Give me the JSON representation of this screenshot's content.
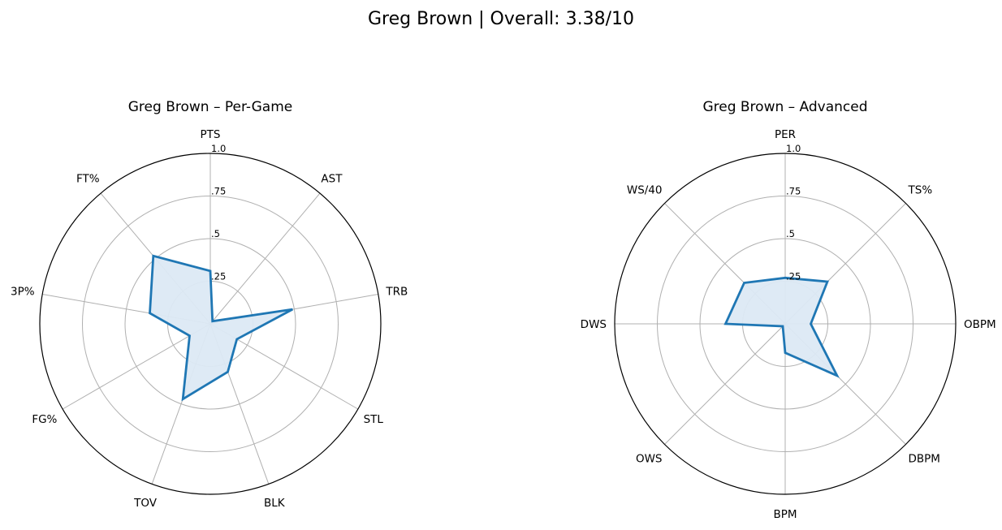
{
  "figure": {
    "suptitle": "Greg Brown | Overall: 3.38/10"
  },
  "colors": {
    "series_line": "#1f77b4",
    "series_fill": "#dce9f4",
    "grid": "#b0b0b0",
    "frame": "#000000"
  },
  "chart_data": [
    {
      "type": "radar",
      "title": "Greg Brown – Per-Game",
      "axes": [
        "PTS",
        "AST",
        "TRB",
        "STL",
        "BLK",
        "TOV",
        "FG%",
        "3P%",
        "FT%"
      ],
      "values": [
        0.31,
        0.02,
        0.49,
        0.18,
        0.3,
        0.47,
        0.14,
        0.36,
        0.52
      ],
      "rlim": [
        0,
        1.0
      ],
      "rticks": [
        ".25",
        ".5",
        ".75",
        "1.0"
      ],
      "grid": true
    },
    {
      "type": "radar",
      "title": "Greg Brown – Advanced",
      "axes": [
        "PER",
        "TS%",
        "OBPM",
        "DBPM",
        "BPM",
        "OWS",
        "DWS",
        "WS/40"
      ],
      "values": [
        0.27,
        0.35,
        0.15,
        0.43,
        0.17,
        0.02,
        0.35,
        0.34
      ],
      "rlim": [
        0,
        1.0
      ],
      "rticks": [
        ".25",
        ".5",
        ".75",
        "1.0"
      ],
      "grid": true
    }
  ]
}
